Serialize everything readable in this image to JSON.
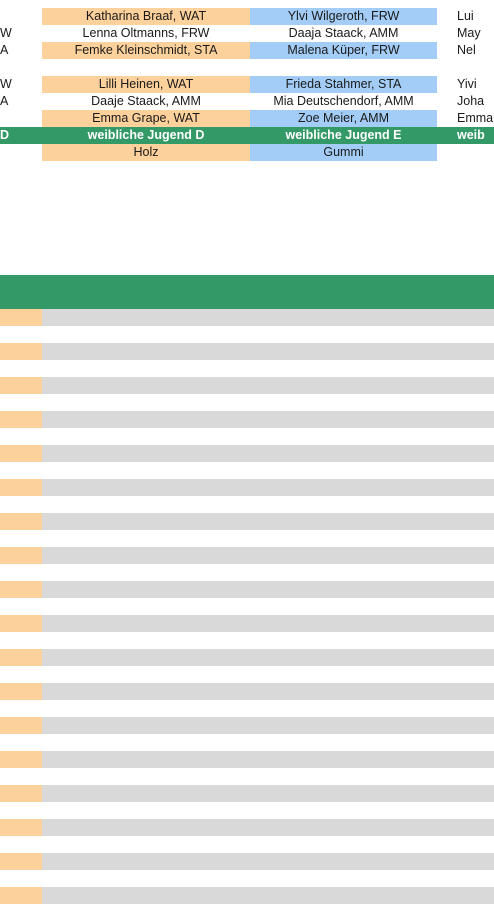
{
  "rows": [
    {
      "c0": "",
      "c1": "Katharina Braaf, WAT",
      "c2": "Ylvi Wilgeroth, FRW",
      "c3": "Lui"
    },
    {
      "c0": "W",
      "c1": "Lenna Oltmanns, FRW",
      "c2": "Daaja Staack, AMM",
      "c3": "May"
    },
    {
      "c0": "A",
      "c1": "Femke Kleinschmidt, STA",
      "c2": "Malena Küper, FRW",
      "c3": "Nel"
    },
    {
      "c0": "W",
      "c1": "Lilli Heinen, WAT",
      "c2": "Frieda Stahmer, STA",
      "c3": "Yivi"
    },
    {
      "c0": "A",
      "c1": "Daaje Staack, AMM",
      "c2": "Mia Deutschendorf, AMM",
      "c3": "Joha"
    },
    {
      "c0": "",
      "c1": "Emma Grape, WAT",
      "c2": "Zoe Meier, AMM",
      "c3": "Emma"
    },
    {
      "c0": "D",
      "c1": "weibliche Jugend D",
      "c2": "weibliche Jugend E",
      "c3": "weib"
    },
    {
      "c0": "",
      "c1": "Holz",
      "c2": "Gummi",
      "c3": ""
    }
  ]
}
